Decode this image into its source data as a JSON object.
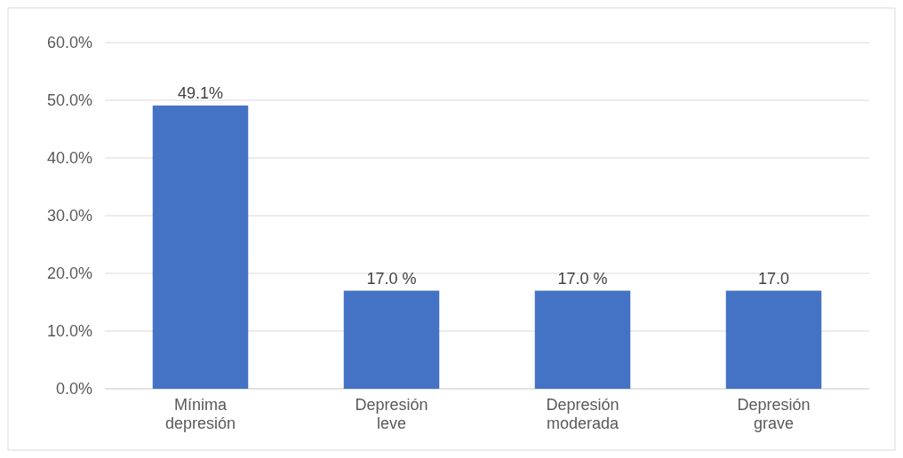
{
  "chart_data": {
    "type": "bar",
    "categories": [
      "Mínima depresión",
      "Depresión leve",
      "Depresión moderada",
      "Depresión grave"
    ],
    "values": [
      49.1,
      17.0,
      17.0,
      17.0
    ],
    "value_labels": [
      "49.1%",
      "17.0 %",
      "17.0 %",
      "17.0"
    ],
    "color": "#4472c4",
    "ylim": [
      0,
      60
    ],
    "yticks": [
      {
        "value": 0,
        "label": "0.0%"
      },
      {
        "value": 10,
        "label": "10.0%"
      },
      {
        "value": 20,
        "label": "20.0%"
      },
      {
        "value": 30,
        "label": "30.0%"
      },
      {
        "value": 40,
        "label": "40.0%"
      },
      {
        "value": 50,
        "label": "50.0%"
      },
      {
        "value": 60,
        "label": "60.0%"
      }
    ],
    "grid": "y"
  }
}
